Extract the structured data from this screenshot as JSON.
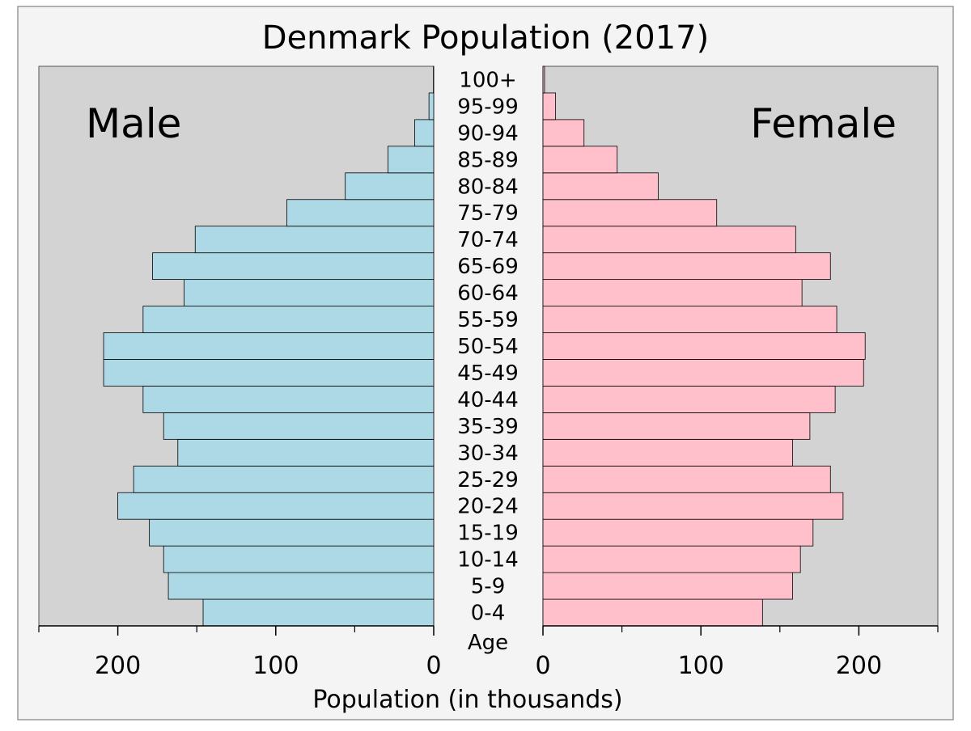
{
  "chart_data": {
    "type": "bar",
    "title": "Denmark Population (2017)",
    "xlabel": "Population (in thousands)",
    "ylabel": "Age",
    "xlim": [
      0,
      250
    ],
    "x_ticks": [
      0,
      100,
      200
    ],
    "grid": false,
    "categories": [
      "0-4",
      "5-9",
      "10-14",
      "15-19",
      "20-24",
      "25-29",
      "30-34",
      "35-39",
      "40-44",
      "45-49",
      "50-54",
      "55-59",
      "60-64",
      "65-69",
      "70-74",
      "75-79",
      "80-84",
      "85-89",
      "90-94",
      "95-99",
      "100+"
    ],
    "series": [
      {
        "name": "Male",
        "color": "#add8e6",
        "values": [
          146,
          168,
          171,
          180,
          200,
          190,
          162,
          171,
          184,
          209,
          209,
          184,
          158,
          178,
          151,
          93,
          56,
          29,
          12,
          3,
          0.2
        ]
      },
      {
        "name": "Female",
        "color": "#ffc0cb",
        "values": [
          139,
          158,
          163,
          171,
          190,
          182,
          158,
          169,
          185,
          203,
          204,
          186,
          164,
          182,
          160,
          110,
          73,
          47,
          26,
          8,
          1
        ]
      }
    ],
    "panel_background": "#d3d3d3",
    "figure_background": "#f4f4f4"
  }
}
